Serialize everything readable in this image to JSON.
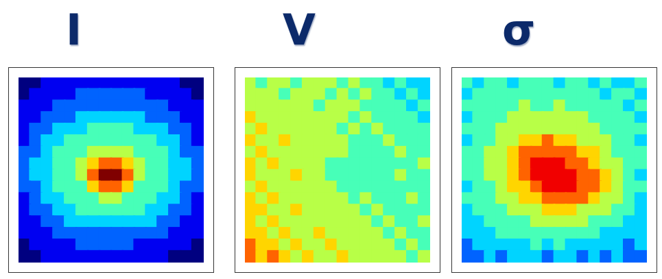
{
  "chart_data": [
    {
      "type": "heatmap",
      "title": "I",
      "tick_labels": false,
      "zlim": [
        0,
        9
      ],
      "cells": [
        [
          0,
          0,
          1,
          1,
          1,
          1,
          1,
          1,
          1,
          1,
          1,
          1,
          1,
          1,
          0,
          0
        ],
        [
          0,
          1,
          1,
          1,
          1,
          2,
          2,
          2,
          2,
          2,
          2,
          1,
          1,
          1,
          1,
          0
        ],
        [
          1,
          1,
          1,
          2,
          2,
          2,
          2,
          2,
          2,
          2,
          2,
          2,
          2,
          1,
          1,
          1
        ],
        [
          1,
          1,
          2,
          2,
          2,
          3,
          3,
          3,
          3,
          3,
          3,
          2,
          2,
          2,
          1,
          1
        ],
        [
          1,
          2,
          2,
          3,
          3,
          3,
          4,
          4,
          4,
          4,
          3,
          3,
          3,
          2,
          2,
          1
        ],
        [
          1,
          2,
          3,
          3,
          4,
          4,
          4,
          4,
          4,
          4,
          4,
          4,
          3,
          3,
          2,
          1
        ],
        [
          2,
          2,
          3,
          4,
          4,
          4,
          5,
          5,
          5,
          5,
          4,
          4,
          4,
          3,
          2,
          2
        ],
        [
          2,
          3,
          3,
          4,
          4,
          5,
          6,
          7,
          7,
          6,
          5,
          4,
          4,
          3,
          3,
          2
        ],
        [
          2,
          3,
          3,
          4,
          4,
          5,
          7,
          9,
          9,
          7,
          5,
          4,
          4,
          3,
          3,
          2
        ],
        [
          2,
          2,
          3,
          4,
          4,
          4,
          6,
          7,
          7,
          6,
          4,
          4,
          4,
          3,
          2,
          2
        ],
        [
          1,
          2,
          3,
          3,
          4,
          4,
          4,
          5,
          5,
          4,
          4,
          4,
          3,
          3,
          2,
          1
        ],
        [
          1,
          2,
          2,
          3,
          3,
          4,
          4,
          4,
          4,
          4,
          4,
          3,
          3,
          2,
          2,
          1
        ],
        [
          1,
          1,
          2,
          2,
          3,
          3,
          3,
          3,
          3,
          3,
          3,
          3,
          2,
          2,
          1,
          1
        ],
        [
          1,
          1,
          1,
          2,
          2,
          2,
          2,
          2,
          2,
          2,
          2,
          2,
          2,
          1,
          1,
          1
        ],
        [
          0,
          1,
          1,
          1,
          1,
          2,
          2,
          2,
          2,
          2,
          1,
          1,
          1,
          1,
          1,
          0
        ],
        [
          0,
          0,
          1,
          1,
          1,
          1,
          1,
          1,
          1,
          1,
          1,
          1,
          1,
          0,
          0,
          0
        ]
      ]
    },
    {
      "type": "heatmap",
      "title": "V",
      "tick_labels": false,
      "zlim": [
        0,
        9
      ],
      "cells": [
        [
          5,
          4,
          5,
          5,
          4,
          5,
          5,
          5,
          4,
          5,
          4,
          4,
          3,
          4,
          3,
          3
        ],
        [
          5,
          5,
          5,
          4,
          5,
          5,
          5,
          4,
          5,
          4,
          5,
          4,
          4,
          3,
          4,
          3
        ],
        [
          5,
          5,
          5,
          5,
          5,
          5,
          4,
          5,
          5,
          5,
          4,
          4,
          4,
          4,
          3,
          4
        ],
        [
          6,
          5,
          5,
          5,
          5,
          5,
          5,
          5,
          5,
          4,
          5,
          4,
          4,
          4,
          4,
          3
        ],
        [
          5,
          6,
          5,
          5,
          5,
          5,
          5,
          5,
          4,
          5,
          4,
          5,
          4,
          4,
          4,
          4
        ],
        [
          6,
          5,
          5,
          6,
          5,
          5,
          5,
          5,
          5,
          4,
          4,
          4,
          5,
          4,
          4,
          4
        ],
        [
          5,
          6,
          5,
          5,
          5,
          5,
          5,
          5,
          5,
          4,
          4,
          4,
          4,
          5,
          4,
          4
        ],
        [
          6,
          5,
          6,
          5,
          5,
          5,
          5,
          4,
          4,
          4,
          4,
          4,
          4,
          4,
          4,
          5
        ],
        [
          6,
          5,
          5,
          5,
          6,
          5,
          5,
          4,
          4,
          4,
          4,
          4,
          4,
          5,
          4,
          4
        ],
        [
          5,
          6,
          5,
          5,
          5,
          5,
          5,
          5,
          4,
          4,
          4,
          4,
          4,
          4,
          4,
          4
        ],
        [
          6,
          5,
          6,
          5,
          5,
          5,
          5,
          5,
          5,
          4,
          5,
          4,
          4,
          4,
          5,
          4
        ],
        [
          6,
          6,
          5,
          5,
          6,
          5,
          5,
          5,
          5,
          5,
          4,
          5,
          4,
          4,
          4,
          4
        ],
        [
          6,
          5,
          6,
          5,
          5,
          5,
          5,
          5,
          5,
          5,
          5,
          4,
          5,
          4,
          4,
          5
        ],
        [
          6,
          6,
          5,
          6,
          5,
          5,
          6,
          5,
          5,
          5,
          5,
          5,
          4,
          5,
          4,
          4
        ],
        [
          7,
          6,
          6,
          5,
          6,
          5,
          5,
          6,
          5,
          5,
          5,
          5,
          5,
          4,
          5,
          4
        ],
        [
          7,
          6,
          7,
          6,
          5,
          6,
          5,
          5,
          6,
          5,
          5,
          5,
          5,
          5,
          4,
          5
        ]
      ]
    },
    {
      "type": "heatmap",
      "title": "σ",
      "tick_labels": false,
      "zlim": [
        0,
        9
      ],
      "cells": [
        [
          4,
          3,
          4,
          4,
          3,
          4,
          4,
          4,
          3,
          4,
          4,
          3,
          4,
          3,
          3,
          4
        ],
        [
          3,
          4,
          4,
          4,
          4,
          4,
          4,
          4,
          4,
          4,
          4,
          4,
          3,
          4,
          4,
          3
        ],
        [
          4,
          4,
          4,
          4,
          4,
          5,
          4,
          4,
          5,
          4,
          4,
          4,
          4,
          4,
          3,
          4
        ],
        [
          3,
          4,
          4,
          4,
          5,
          5,
          5,
          5,
          5,
          5,
          5,
          4,
          4,
          4,
          4,
          3
        ],
        [
          4,
          4,
          4,
          5,
          5,
          5,
          5,
          5,
          5,
          5,
          5,
          5,
          4,
          4,
          4,
          4
        ],
        [
          3,
          4,
          4,
          5,
          5,
          6,
          6,
          7,
          6,
          6,
          5,
          5,
          5,
          4,
          4,
          3
        ],
        [
          4,
          4,
          5,
          5,
          6,
          7,
          7,
          7,
          7,
          7,
          6,
          6,
          5,
          4,
          4,
          4
        ],
        [
          4,
          4,
          5,
          5,
          6,
          7,
          8,
          8,
          8,
          7,
          7,
          6,
          5,
          5,
          4,
          4
        ],
        [
          4,
          4,
          5,
          5,
          6,
          7,
          8,
          8,
          8,
          8,
          7,
          7,
          6,
          5,
          4,
          3
        ],
        [
          3,
          4,
          4,
          5,
          6,
          6,
          7,
          8,
          8,
          8,
          7,
          7,
          6,
          5,
          4,
          4
        ],
        [
          4,
          4,
          4,
          5,
          5,
          6,
          6,
          7,
          7,
          7,
          7,
          6,
          5,
          5,
          4,
          3
        ],
        [
          3,
          4,
          4,
          4,
          5,
          5,
          5,
          6,
          6,
          6,
          5,
          5,
          5,
          4,
          4,
          3
        ],
        [
          3,
          3,
          4,
          4,
          4,
          4,
          5,
          5,
          5,
          5,
          5,
          4,
          4,
          4,
          3,
          3
        ],
        [
          3,
          3,
          3,
          4,
          4,
          4,
          4,
          4,
          4,
          4,
          4,
          4,
          3,
          3,
          3,
          3
        ],
        [
          2,
          3,
          3,
          3,
          3,
          3,
          4,
          3,
          4,
          3,
          3,
          3,
          3,
          3,
          2,
          3
        ],
        [
          2,
          2,
          3,
          2,
          3,
          3,
          3,
          2,
          3,
          3,
          2,
          3,
          2,
          3,
          2,
          2
        ]
      ]
    }
  ]
}
